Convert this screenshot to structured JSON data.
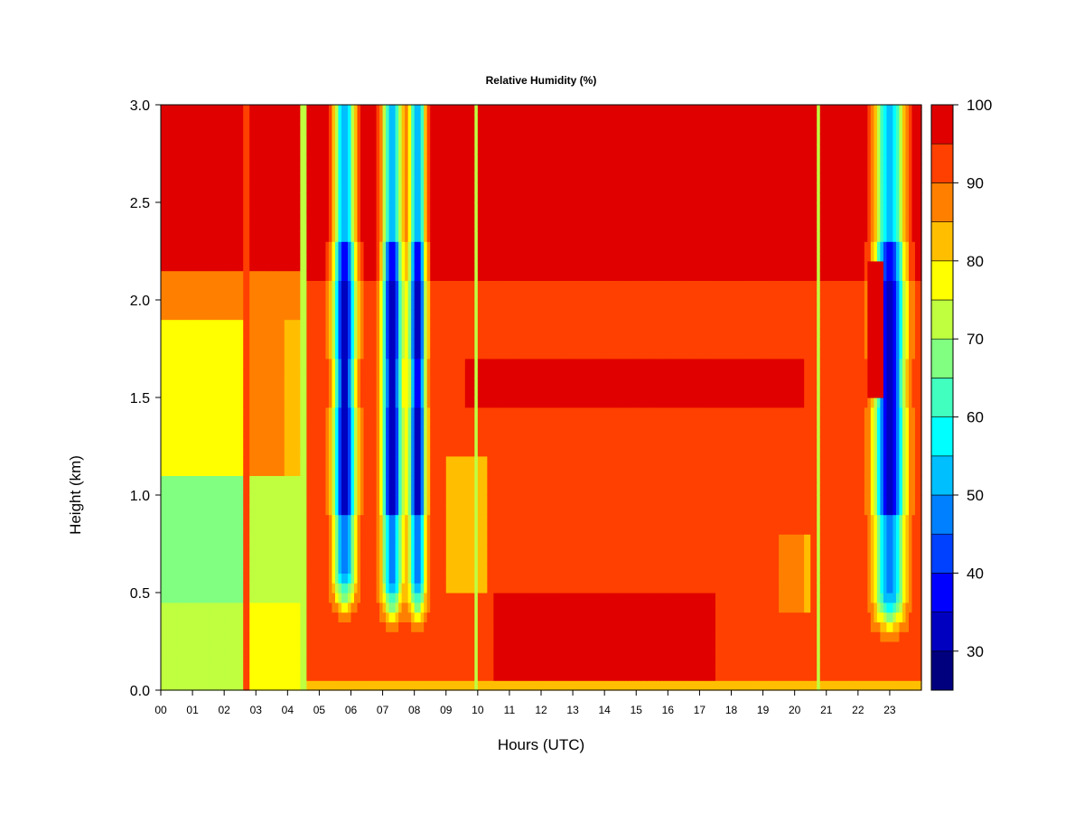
{
  "chart_data": {
    "type": "heatmap",
    "title": "Relative Humidity (%)",
    "xlabel": "Hours (UTC)",
    "ylabel": "Height (km)",
    "xlim": [
      0,
      24
    ],
    "ylim": [
      0.0,
      3.0
    ],
    "x_ticks": [
      "00",
      "01",
      "02",
      "03",
      "04",
      "05",
      "06",
      "07",
      "08",
      "09",
      "10",
      "11",
      "12",
      "13",
      "14",
      "15",
      "16",
      "17",
      "18",
      "19",
      "20",
      "21",
      "22",
      "23"
    ],
    "y_ticks": [
      "0.0",
      "0.5",
      "1.0",
      "1.5",
      "2.0",
      "2.5",
      "3.0"
    ],
    "colorbar": {
      "range": [
        25,
        100
      ],
      "levels": [
        25,
        30,
        35,
        40,
        45,
        50,
        55,
        60,
        65,
        70,
        75,
        80,
        85,
        90,
        95,
        100
      ],
      "colors": [
        "#00007f",
        "#0000c0",
        "#0000ff",
        "#0040ff",
        "#0080ff",
        "#00bfff",
        "#00ffff",
        "#40ffbf",
        "#80ff80",
        "#bfff40",
        "#ffff00",
        "#ffbf00",
        "#ff8000",
        "#ff4000",
        "#e00000",
        "#7f0000"
      ],
      "tick_labels": [
        "30",
        "40",
        "50",
        "60",
        "70",
        "80",
        "90",
        "100"
      ]
    },
    "grid": false,
    "legend": "colorbar-right"
  }
}
